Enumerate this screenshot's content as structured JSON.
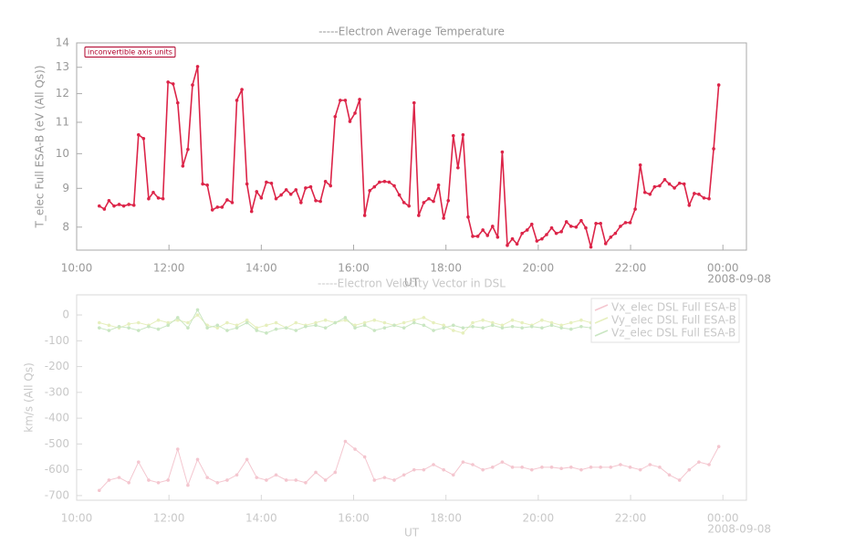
{
  "chart_data": [
    {
      "type": "line",
      "title": "-----Electron Average Temperature",
      "ylabel": "T_elec Full ESA-B (eV (All Qs))",
      "xlabel": "UT",
      "date_label": "2008-09-08",
      "annotation": "inconvertible axis units",
      "log_scale": true,
      "ylim": [
        7.46,
        14
      ],
      "yticks": [
        8,
        9,
        10,
        11,
        12,
        13,
        14
      ],
      "xlim": [
        10,
        24.51
      ],
      "xticks": [
        {
          "value": 10,
          "label": "10:00"
        },
        {
          "value": 12,
          "label": "12:00"
        },
        {
          "value": 14,
          "label": "14:00"
        },
        {
          "value": 16,
          "label": "16:00"
        },
        {
          "value": 18,
          "label": "18:00"
        },
        {
          "value": 20,
          "label": "20:00"
        },
        {
          "value": 22,
          "label": "22:00"
        },
        {
          "value": 24,
          "label": "00:00"
        }
      ],
      "x": [
        10.49,
        10.6,
        10.7,
        10.81,
        10.92,
        11.02,
        11.13,
        11.24,
        11.34,
        11.45,
        11.56,
        11.66,
        11.77,
        11.87,
        11.98,
        12.09,
        12.19,
        12.3,
        12.41,
        12.51,
        12.62,
        12.73,
        12.83,
        12.94,
        13.05,
        13.15,
        13.26,
        13.37,
        13.47,
        13.58,
        13.69,
        13.79,
        13.9,
        14.0,
        14.11,
        14.22,
        14.32,
        14.43,
        14.54,
        14.64,
        14.75,
        14.86,
        14.96,
        15.07,
        15.18,
        15.28,
        15.39,
        15.5,
        15.6,
        15.71,
        15.82,
        15.92,
        16.03,
        16.13,
        16.24,
        16.35,
        16.45,
        16.56,
        16.67,
        16.77,
        16.88,
        16.99,
        17.09,
        17.2,
        17.31,
        17.41,
        17.52,
        17.63,
        17.73,
        17.84,
        17.95,
        18.05,
        18.16,
        18.26,
        18.37,
        18.48,
        18.58,
        18.69,
        18.8,
        18.9,
        19.01,
        19.12,
        19.22,
        19.33,
        19.44,
        19.54,
        19.65,
        19.76,
        19.86,
        19.97,
        20.08,
        20.18,
        20.29,
        20.39,
        20.5,
        20.61,
        20.71,
        20.82,
        20.93,
        21.03,
        21.14,
        21.25,
        21.35,
        21.46,
        21.57,
        21.67,
        21.78,
        21.89,
        21.99,
        22.1,
        22.21,
        22.31,
        22.42,
        22.52,
        22.63,
        22.74,
        22.84,
        22.95,
        23.06,
        23.16,
        23.27,
        23.38,
        23.48,
        23.59,
        23.7,
        23.8,
        23.91
      ],
      "series": [
        {
          "color": "#dc2448",
          "values": [
            8.53,
            8.45,
            8.67,
            8.53,
            8.57,
            8.53,
            8.57,
            8.55,
            10.59,
            10.47,
            8.72,
            8.89,
            8.74,
            8.72,
            12.43,
            12.36,
            11.67,
            9.63,
            10.13,
            12.32,
            13.03,
            9.12,
            9.09,
            8.43,
            8.5,
            8.5,
            8.69,
            8.62,
            11.76,
            12.15,
            9.12,
            8.39,
            8.91,
            8.74,
            9.17,
            9.14,
            8.72,
            8.82,
            8.96,
            8.84,
            8.96,
            8.62,
            9.01,
            9.04,
            8.67,
            8.65,
            9.19,
            9.07,
            11.19,
            11.76,
            11.76,
            11.03,
            11.31,
            11.79,
            8.29,
            8.94,
            9.04,
            9.17,
            9.19,
            9.17,
            9.07,
            8.82,
            8.62,
            8.53,
            11.67,
            8.29,
            8.62,
            8.72,
            8.65,
            9.09,
            8.22,
            8.67,
            10.56,
            9.58,
            10.59,
            8.25,
            7.78,
            7.78,
            7.93,
            7.8,
            8.02,
            7.76,
            10.05,
            7.57,
            7.72,
            7.6,
            7.85,
            7.93,
            8.07,
            7.67,
            7.72,
            7.82,
            7.98,
            7.85,
            7.89,
            8.13,
            8.02,
            8.0,
            8.16,
            7.98,
            7.53,
            8.09,
            8.09,
            7.61,
            7.76,
            7.85,
            8.02,
            8.11,
            8.11,
            8.45,
            9.66,
            8.89,
            8.84,
            9.04,
            9.07,
            9.24,
            9.12,
            9.01,
            9.14,
            9.12,
            8.55,
            8.86,
            8.84,
            8.74,
            8.72,
            10.15,
            12.32
          ]
        }
      ]
    },
    {
      "type": "line",
      "title": "-----Electron Velocity Vector in DSL",
      "ylabel": "km/s (All Qs)",
      "xlabel": "UT",
      "date_label": "2008-09-08",
      "log_scale": false,
      "ylim": [
        -718,
        78
      ],
      "yticks": [
        0,
        -100,
        -200,
        -300,
        -400,
        -500,
        -600,
        -700
      ],
      "xlim": [
        10,
        24.51
      ],
      "xticks": [
        {
          "value": 10,
          "label": "10:00"
        },
        {
          "value": 12,
          "label": "12:00"
        },
        {
          "value": 14,
          "label": "14:00"
        },
        {
          "value": 16,
          "label": "16:00"
        },
        {
          "value": 18,
          "label": "18:00"
        },
        {
          "value": 20,
          "label": "20:00"
        },
        {
          "value": 22,
          "label": "22:00"
        },
        {
          "value": 24,
          "label": "00:00"
        }
      ],
      "legend": "upper right",
      "x": [
        10.49,
        10.7,
        10.92,
        11.13,
        11.34,
        11.56,
        11.77,
        11.98,
        12.19,
        12.41,
        12.62,
        12.83,
        13.05,
        13.26,
        13.47,
        13.69,
        13.9,
        14.11,
        14.32,
        14.54,
        14.75,
        14.96,
        15.18,
        15.39,
        15.6,
        15.82,
        16.03,
        16.24,
        16.45,
        16.67,
        16.88,
        17.09,
        17.31,
        17.52,
        17.73,
        17.95,
        18.16,
        18.37,
        18.58,
        18.8,
        19.01,
        19.22,
        19.44,
        19.65,
        19.86,
        20.08,
        20.29,
        20.5,
        20.71,
        20.93,
        21.14,
        21.35,
        21.57,
        21.78,
        21.99,
        22.21,
        22.42,
        22.63,
        22.84,
        23.06,
        23.27,
        23.48,
        23.7,
        23.91
      ],
      "series": [
        {
          "name": "Vx_elec DSL Full ESA-B",
          "color": "#f4c6cf",
          "values": [
            -680,
            -640,
            -630,
            -650,
            -570,
            -640,
            -650,
            -640,
            -520,
            -660,
            -560,
            -630,
            -650,
            -640,
            -620,
            -560,
            -630,
            -640,
            -620,
            -640,
            -640,
            -650,
            -610,
            -640,
            -610,
            -490,
            -520,
            -550,
            -640,
            -630,
            -640,
            -620,
            -600,
            -600,
            -580,
            -600,
            -620,
            -570,
            -580,
            -600,
            -590,
            -570,
            -590,
            -590,
            -600,
            -590,
            -590,
            -595,
            -590,
            -600,
            -590,
            -590,
            -590,
            -580,
            -590,
            -600,
            -580,
            -590,
            -620,
            -640,
            -600,
            -570,
            -580,
            -510
          ]
        },
        {
          "name": "Vy_elec DSL Full ESA-B",
          "color": "#e6efbd",
          "values": [
            -30,
            -40,
            -50,
            -35,
            -30,
            -40,
            -20,
            -30,
            -20,
            -30,
            0,
            -40,
            -50,
            -30,
            -40,
            -20,
            -50,
            -40,
            -30,
            -50,
            -30,
            -40,
            -30,
            -20,
            -30,
            -20,
            -40,
            -30,
            -20,
            -30,
            -40,
            -30,
            -20,
            -10,
            -30,
            -40,
            -60,
            -70,
            -30,
            -20,
            -30,
            -40,
            -20,
            -30,
            -40,
            -20,
            -30,
            -40,
            -30,
            -20,
            -30,
            -40,
            -30,
            -20,
            -30,
            -40,
            -30,
            -20,
            -30,
            -30,
            -40,
            -30,
            -20,
            -30
          ]
        },
        {
          "name": "Vz_elec DSL Full ESA-B",
          "color": "#c9e6c2",
          "values": [
            -50,
            -60,
            -45,
            -50,
            -60,
            -45,
            -55,
            -40,
            -10,
            -50,
            20,
            -50,
            -40,
            -60,
            -50,
            -30,
            -60,
            -70,
            -55,
            -50,
            -60,
            -45,
            -40,
            -50,
            -30,
            -10,
            -50,
            -40,
            -60,
            -50,
            -40,
            -50,
            -30,
            -40,
            -60,
            -50,
            -40,
            -50,
            -45,
            -50,
            -40,
            -50,
            -45,
            -50,
            -45,
            -50,
            -40,
            -50,
            -55,
            -45,
            -50,
            -60,
            -70,
            -60,
            -50,
            -55,
            -45,
            -50,
            -50,
            -45,
            -50,
            -55,
            -50,
            -45
          ]
        }
      ]
    }
  ]
}
